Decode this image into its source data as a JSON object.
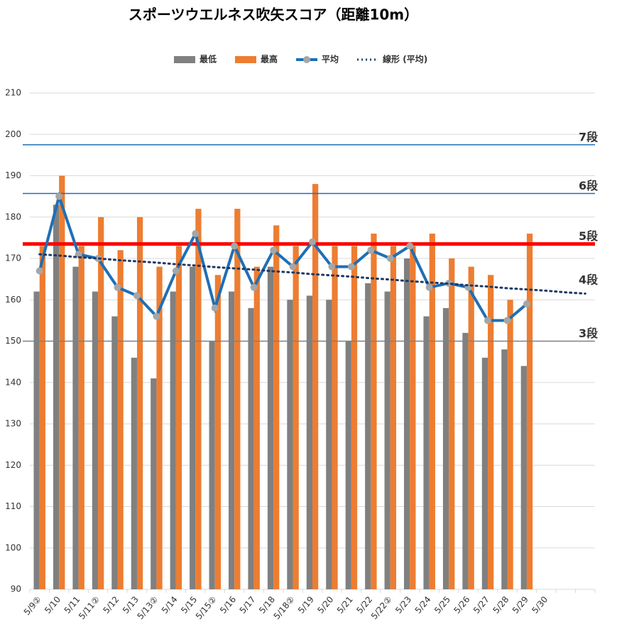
{
  "chart_data": {
    "type": "bar-line",
    "title": "スポーツウエルネス吹矢スコア（距離10m）",
    "categories": [
      "5/9②",
      "5/10",
      "5/11",
      "5/11②",
      "5/12",
      "5/13",
      "5/13②",
      "5/14",
      "5/15",
      "5/15②",
      "5/16",
      "5/17",
      "5/18",
      "5/18②",
      "5/19",
      "5/20",
      "5/21",
      "5/22",
      "5/22②",
      "5/23",
      "5/24",
      "5/25",
      "5/26",
      "5/27",
      "5/28",
      "5/29",
      "5/30",
      null,
      null
    ],
    "series": [
      {
        "name": "最低",
        "kind": "bar",
        "color": "#808080",
        "values": [
          162,
          183,
          168,
          162,
          156,
          146,
          141,
          162,
          168,
          150,
          162,
          158,
          168,
          160,
          161,
          160,
          150,
          164,
          162,
          170,
          156,
          158,
          152,
          146,
          148,
          144,
          null,
          null,
          null
        ]
      },
      {
        "name": "最高",
        "kind": "bar",
        "color": "#ed7d31",
        "values": [
          173,
          190,
          173,
          180,
          172,
          180,
          168,
          173,
          182,
          166,
          182,
          168,
          178,
          173,
          188,
          173,
          173,
          176,
          173,
          173,
          176,
          170,
          168,
          166,
          160,
          176,
          null,
          null,
          null
        ]
      },
      {
        "name": "平均",
        "kind": "line",
        "color": "#1f6fb5",
        "marker_color": "#a6a6a6",
        "values": [
          167,
          185,
          171,
          170,
          163,
          161,
          156,
          167,
          176,
          158,
          173,
          163,
          172,
          168,
          174,
          168,
          168,
          172,
          170,
          173,
          163,
          164,
          163,
          155,
          155,
          159,
          null,
          null,
          null
        ]
      },
      {
        "name": "線形 (平均)",
        "kind": "trend",
        "color": "#1f3864",
        "values": [
          171,
          170.7,
          170.3,
          170,
          169.6,
          169.3,
          169,
          168.6,
          168.3,
          167.9,
          167.6,
          167.3,
          166.9,
          166.6,
          166.2,
          165.9,
          165.6,
          165.2,
          164.9,
          164.5,
          164.2,
          163.9,
          163.5,
          163.2,
          162.8,
          162.5,
          162.2,
          161.8,
          161.5
        ]
      }
    ],
    "levels": [
      {
        "label": "7段",
        "value": 197.5,
        "color": "#1f6fb5",
        "label_color": "#000",
        "width": 1.5,
        "line": true
      },
      {
        "label": "6段",
        "value": 185.7,
        "color": "#1f6fb5",
        "label_color": "#000",
        "width": 1.5,
        "line": true
      },
      {
        "label": "5段",
        "value": 173.5,
        "color": "#ff0000",
        "label_color": "#1f6fb5",
        "width": 5,
        "line": true
      },
      {
        "label": "4段",
        "value": 163,
        "color": "#000",
        "label_color": "#000",
        "width": 0,
        "line": false
      },
      {
        "label": "3段",
        "value": 150,
        "color": "#808080",
        "label_color": "#000",
        "width": 1.5,
        "line": true
      }
    ],
    "ylim": [
      90,
      210
    ],
    "yticks": [
      90,
      100,
      110,
      120,
      130,
      140,
      150,
      160,
      170,
      180,
      190,
      200,
      210
    ],
    "grid": true
  }
}
